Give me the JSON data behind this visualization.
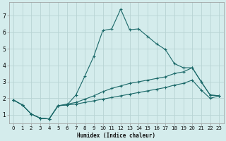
{
  "xlabel": "Humidex (Indice chaleur)",
  "background_color": "#d4ecec",
  "grid_color": "#b8d4d4",
  "line_color": "#1a6868",
  "xlim": [
    -0.5,
    23.5
  ],
  "ylim": [
    0.5,
    7.8
  ],
  "xticks": [
    0,
    1,
    2,
    3,
    4,
    5,
    6,
    7,
    8,
    9,
    10,
    11,
    12,
    13,
    14,
    15,
    16,
    17,
    18,
    19,
    20,
    21,
    22,
    23
  ],
  "yticks": [
    1,
    2,
    3,
    4,
    5,
    6,
    7
  ],
  "line1_x": [
    0,
    1,
    2,
    3,
    4,
    5,
    6,
    7,
    8,
    9,
    10,
    11,
    12,
    13,
    14,
    15,
    16,
    17,
    18,
    19,
    20,
    21,
    22,
    23
  ],
  "line1_y": [
    1.9,
    1.6,
    1.05,
    0.8,
    0.75,
    1.55,
    1.6,
    2.2,
    3.35,
    4.55,
    6.1,
    6.2,
    7.4,
    6.15,
    6.2,
    5.75,
    5.3,
    4.95,
    4.1,
    3.85,
    3.85,
    3.0,
    2.2,
    2.15
  ],
  "line2_x": [
    0,
    1,
    2,
    3,
    4,
    5,
    6,
    7,
    8,
    9,
    10,
    11,
    12,
    13,
    14,
    15,
    16,
    17,
    18,
    19,
    20,
    21,
    22,
    23
  ],
  "line2_y": [
    1.9,
    1.6,
    1.05,
    0.8,
    0.75,
    1.55,
    1.65,
    1.75,
    1.95,
    2.15,
    2.4,
    2.6,
    2.75,
    2.9,
    3.0,
    3.1,
    3.2,
    3.3,
    3.5,
    3.6,
    3.85,
    3.0,
    2.2,
    2.15
  ],
  "line3_x": [
    0,
    1,
    2,
    3,
    4,
    5,
    6,
    7,
    8,
    9,
    10,
    11,
    12,
    13,
    14,
    15,
    16,
    17,
    18,
    19,
    20,
    21,
    22,
    23
  ],
  "line3_y": [
    1.9,
    1.6,
    1.05,
    0.8,
    0.75,
    1.55,
    1.6,
    1.65,
    1.75,
    1.85,
    1.95,
    2.05,
    2.15,
    2.25,
    2.35,
    2.45,
    2.55,
    2.65,
    2.8,
    2.9,
    3.1,
    2.5,
    2.0,
    2.15
  ]
}
